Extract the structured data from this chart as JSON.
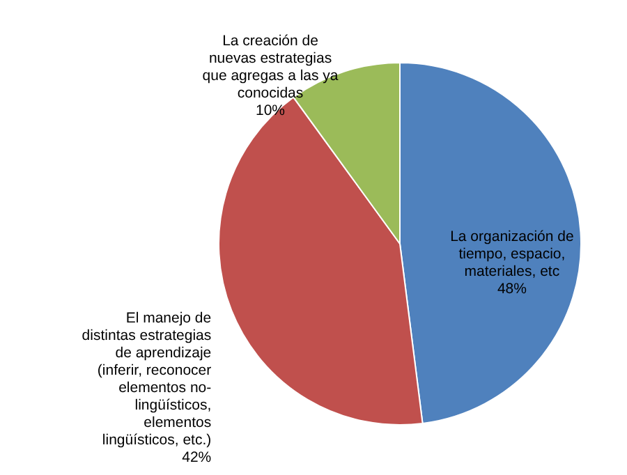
{
  "chart_data": {
    "type": "pie",
    "categories": [
      "La organización de\ntiempo, espacio,\nmateriales, etc",
      "El manejo de\ndistintas estrategias\nde aprendizaje\n(inferir, reconocer\nelementos no-\nlingüísticos,\nelementos\nlingüísticos, etc.)",
      "La creación de\nnuevas estrategias\nque agregas a las ya\nconocidas"
    ],
    "values": [
      48,
      42,
      10
    ],
    "value_labels": [
      "48%",
      "42%",
      "10%"
    ],
    "colors": [
      "#4f81bd",
      "#c0504d",
      "#9bbb59"
    ]
  }
}
